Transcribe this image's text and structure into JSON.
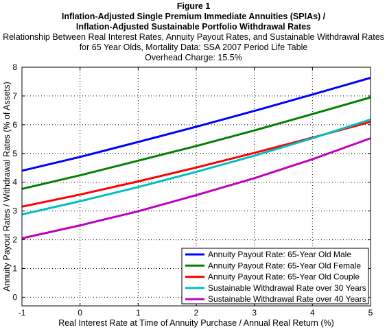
{
  "chart_data": {
    "type": "line",
    "title": "Figure 1",
    "subtitle_lines": [
      "Inflation-Adjusted Single Premium Immediate Annuities (SPIAs) /",
      "Inflation-Adjusted Sustainable Portfolio Withdrawal Rates",
      "Relationship Between Real Interest Rates, Annuity Payout Rates, and Sustainable Withdrawal Rates",
      "for 65 Year Olds, Mortality Data: SSA 2007 Period Life Table",
      "Overhead Charge: 15.5%"
    ],
    "xlabel": "Real Interest Rate at Time of Annuity Purchase / Annual Real Return (%)",
    "ylabel": "Annuity Payout Rates / Withdrawal Rates   (% of Assets)",
    "xlim": [
      -1,
      5
    ],
    "ylim": [
      -0.3,
      8
    ],
    "xticks": [
      -1,
      0,
      1,
      2,
      3,
      4,
      5
    ],
    "yticks": [
      0,
      1,
      2,
      3,
      4,
      5,
      6,
      7,
      8
    ],
    "grid": true,
    "grid_style": "dotted",
    "legend_position": "bottom-right",
    "x": [
      -1,
      0,
      1,
      2,
      3,
      4,
      5
    ],
    "series": [
      {
        "name": "Annuity Payout Rate: 65-Year Old Male",
        "color": "#0000ff",
        "values": [
          4.4,
          4.88,
          5.4,
          5.93,
          6.48,
          7.05,
          7.63
        ]
      },
      {
        "name": "Annuity Payout Rate: 65-Year Old Female",
        "color": "#008000",
        "values": [
          3.77,
          4.24,
          4.75,
          5.26,
          5.8,
          6.37,
          6.95
        ]
      },
      {
        "name": "Annuity Payout Rate: 65-Year Old Couple",
        "color": "#ff0000",
        "values": [
          3.15,
          3.57,
          4.03,
          4.51,
          5.02,
          5.55,
          6.1
        ]
      },
      {
        "name": "Sustainable Withdrawal Rate over 30 Years",
        "color": "#00bfbf",
        "values": [
          2.88,
          3.34,
          3.83,
          4.36,
          4.92,
          5.53,
          6.18
        ]
      },
      {
        "name": "Sustainable Withdrawal Rate over 40 Years",
        "color": "#bf00bf",
        "values": [
          2.05,
          2.5,
          2.99,
          3.55,
          4.14,
          4.8,
          5.53
        ]
      }
    ]
  }
}
